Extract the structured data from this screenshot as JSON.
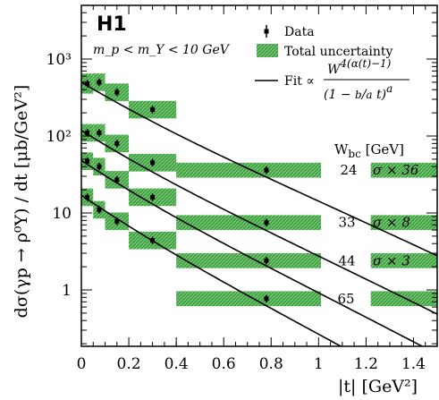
{
  "labels": {
    "experiment": "H1",
    "selection": "m_p < m_Y < 10 GeV",
    "legend_data": "Data",
    "legend_unc": "Total uncertainty",
    "legend_fit_prefix": "Fit ∝",
    "w_header": "W_bc [GeV]",
    "y_axis": "dσ(γp → ρ⁰Y) / dt [μb/GeV²]",
    "x_axis": "|t| [GeV²]"
  },
  "chart_data": {
    "type": "scatter",
    "title": "H1",
    "xlabel": "|t| [GeV²]",
    "ylabel": "dσ(γp → ρ⁰Y)/dt [μb/GeV²]",
    "xlim": [
      0,
      1.5
    ],
    "ylim": [
      0.2,
      5000
    ],
    "log_y": true,
    "x_ticks": [
      "0",
      "0.2",
      "0.4",
      "0.6",
      "0.8",
      "1",
      "1.2",
      "1.4"
    ],
    "y_ticks": [
      "1",
      "10",
      "10²",
      "10³"
    ],
    "legend_position": "top-right",
    "colors": {
      "band": "#3a9a3a",
      "band_light": "#8fd18f",
      "line": "#000000"
    },
    "series": [
      {
        "w": "24",
        "scale": "σ × 36",
        "points": [
          {
            "t": 0.025,
            "y": 480,
            "xlo": 0.0,
            "xhi": 0.05,
            "uf": 1.35
          },
          {
            "t": 0.075,
            "y": 500,
            "xlo": 0.05,
            "xhi": 0.1,
            "uf": 1.3
          },
          {
            "t": 0.15,
            "y": 370,
            "xlo": 0.1,
            "xhi": 0.2,
            "uf": 1.3
          },
          {
            "t": 0.3,
            "y": 220,
            "xlo": 0.2,
            "xhi": 0.4,
            "uf": 1.3
          }
        ],
        "wide_points": [
          {
            "t": 0.78,
            "y": 36,
            "xlo": 0.4,
            "xhi": 1.01,
            "uf": 1.25
          }
        ],
        "fit": {
          "a": 500,
          "b": 4.2
        }
      },
      {
        "w": "33",
        "scale": "σ × 8",
        "points": [
          {
            "t": 0.025,
            "y": 110,
            "xlo": 0.0,
            "xhi": 0.05,
            "uf": 1.3
          },
          {
            "t": 0.075,
            "y": 110,
            "xlo": 0.05,
            "xhi": 0.1,
            "uf": 1.3
          },
          {
            "t": 0.15,
            "y": 80,
            "xlo": 0.1,
            "xhi": 0.2,
            "uf": 1.3
          },
          {
            "t": 0.3,
            "y": 45,
            "xlo": 0.2,
            "xhi": 0.4,
            "uf": 1.3
          }
        ],
        "wide_points": [
          {
            "t": 0.78,
            "y": 7.5,
            "xlo": 0.4,
            "xhi": 1.01,
            "uf": 1.25
          }
        ],
        "fit": {
          "a": 118,
          "b": 4.4
        }
      },
      {
        "w": "44",
        "scale": "σ × 3",
        "points": [
          {
            "t": 0.025,
            "y": 47,
            "xlo": 0.0,
            "xhi": 0.05,
            "uf": 1.3
          },
          {
            "t": 0.075,
            "y": 40,
            "xlo": 0.05,
            "xhi": 0.1,
            "uf": 1.3
          },
          {
            "t": 0.15,
            "y": 27,
            "xlo": 0.1,
            "xhi": 0.2,
            "uf": 1.3
          },
          {
            "t": 0.3,
            "y": 16,
            "xlo": 0.2,
            "xhi": 0.4,
            "uf": 1.3
          }
        ],
        "wide_points": [
          {
            "t": 0.78,
            "y": 2.4,
            "xlo": 0.4,
            "xhi": 1.01,
            "uf": 1.25
          }
        ],
        "fit": {
          "a": 48,
          "b": 4.6
        }
      },
      {
        "w": "65",
        "scale": "",
        "points": [
          {
            "t": 0.025,
            "y": 16,
            "xlo": 0.0,
            "xhi": 0.05,
            "uf": 1.3
          },
          {
            "t": 0.075,
            "y": 11,
            "xlo": 0.05,
            "xhi": 0.1,
            "uf": 1.3
          },
          {
            "t": 0.15,
            "y": 7.8,
            "xlo": 0.1,
            "xhi": 0.2,
            "uf": 1.3
          },
          {
            "t": 0.3,
            "y": 4.4,
            "xlo": 0.2,
            "xhi": 0.4,
            "uf": 1.3
          }
        ],
        "wide_points": [
          {
            "t": 0.78,
            "y": 0.77,
            "xlo": 0.4,
            "xhi": 1.01,
            "uf": 1.25
          }
        ],
        "fit": {
          "a": 17,
          "b": 4.8
        }
      }
    ]
  }
}
